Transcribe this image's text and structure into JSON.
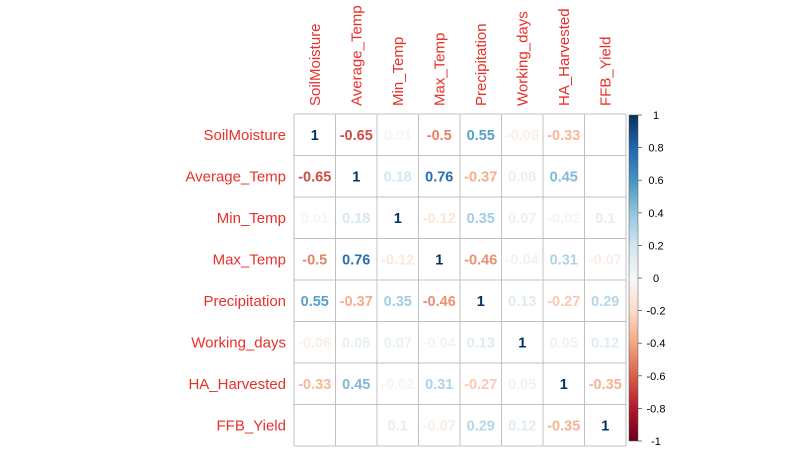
{
  "chart_data": {
    "type": "heatmap",
    "title": "",
    "variables": [
      "SoilMoisture",
      "Average_Temp",
      "Min_Temp",
      "Max_Temp",
      "Precipitation",
      "Working_days",
      "HA_Harvested",
      "FFB_Yield"
    ],
    "matrix": [
      [
        "1",
        "-0.65",
        "0.01",
        "-0.5",
        "0.55",
        "-0.06",
        "-0.33",
        ""
      ],
      [
        "-0.65",
        "1",
        "0.18",
        "0.76",
        "-0.37",
        "0.08",
        "0.45",
        ""
      ],
      [
        "0.01",
        "0.18",
        "1",
        "-0.12",
        "0.35",
        "0.07",
        "-0.02",
        "0.1"
      ],
      [
        "-0.5",
        "0.76",
        "-0.12",
        "1",
        "-0.46",
        "-0.04",
        "0.31",
        "-0.07"
      ],
      [
        "0.55",
        "-0.37",
        "0.35",
        "-0.46",
        "1",
        "0.13",
        "-0.27",
        "0.29"
      ],
      [
        "-0.06",
        "0.08",
        "0.07",
        "-0.04",
        "0.13",
        "1",
        "0.05",
        "0.12"
      ],
      [
        "-0.33",
        "0.45",
        "-0.02",
        "0.31",
        "-0.27",
        "0.05",
        "1",
        "-0.35"
      ],
      [
        "",
        "",
        "0.1",
        "-0.07",
        "0.29",
        "0.12",
        "-0.35",
        "1"
      ]
    ],
    "colorbar": {
      "range": [
        -1,
        1
      ],
      "ticks": [
        "1",
        "0.8",
        "0.6",
        "0.4",
        "0.2",
        "0",
        "-0.2",
        "-0.4",
        "-0.6",
        "-0.8",
        "-1"
      ]
    },
    "colors": {
      "label": "#e8302a",
      "negative_end": "#67001f",
      "positive_end": "#053061",
      "mid": "#f7f7f7",
      "grid": "#c0c0c0"
    }
  }
}
